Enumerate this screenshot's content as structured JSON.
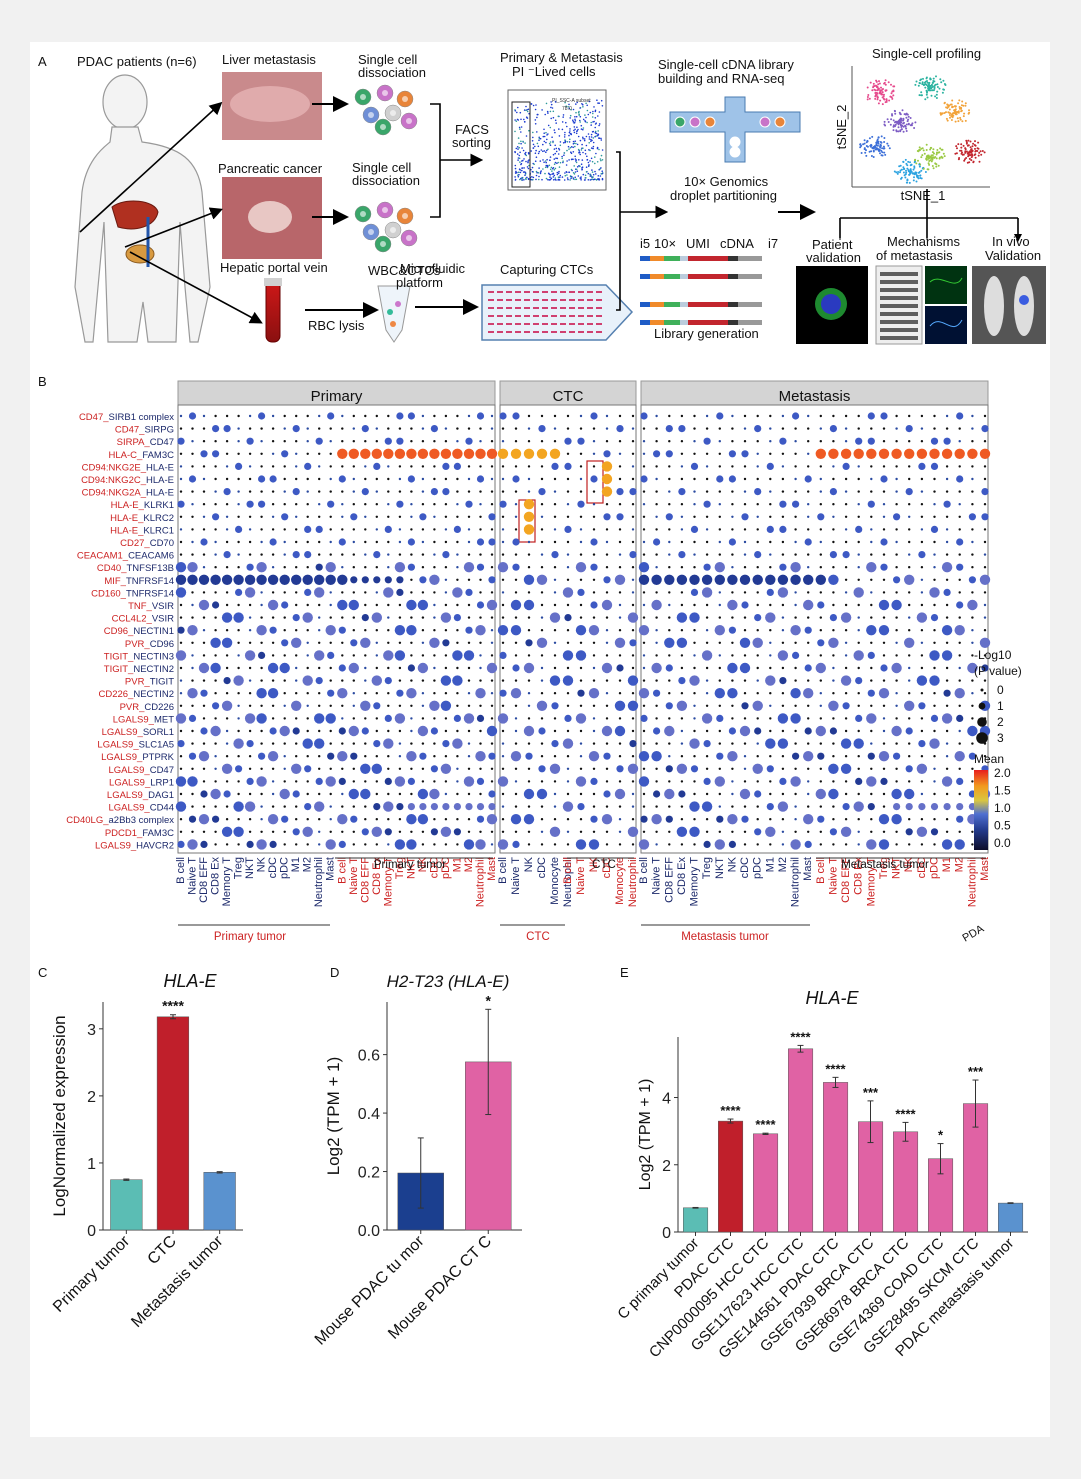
{
  "colors": {
    "bar_primary": "#5bbdb4",
    "bar_ctc": "#c01f2b",
    "bar_meta": "#5a92cf",
    "bar_mouse_pdac": "#1b3f8f",
    "bar_pink": "#e062a4",
    "ligand_red": "#cc2222"
  },
  "panel_a": {
    "label": "A",
    "patients": "PDAC patients (n=6)",
    "liver": "Liver metastasis",
    "pancreatic": "Pancreatic cancer",
    "portal": "Hepatic portal vein",
    "sc_dissoc": [
      "Single cell",
      "dissociation"
    ],
    "sc_dissoc2": [
      "Single cell",
      "dissociation"
    ],
    "wbc": "WBC&CTCs",
    "rbc": "RBC lysis",
    "micro": [
      "Microfluidic",
      "platform"
    ],
    "capturing": "Capturing CTCs",
    "facs": [
      "FACS",
      "sorting"
    ],
    "primary_meta": [
      "Primary & Metastasis",
      "PI ⁻Lived cells"
    ],
    "facs_plot_title": "PI_SSC-A subset",
    "facs_plot_value": "78.0",
    "cdna": [
      "Single-cell cDNA library",
      "building and RNA-seq"
    ],
    "genomics": [
      "10× Genomics",
      "droplet partitioning"
    ],
    "lib_header": [
      "i5",
      "10×",
      "UMI",
      "cDNA",
      "i7"
    ],
    "lib_gen": "Library generation",
    "profiling": "Single-cell profiling",
    "tsne_x": "tSNE_1",
    "tsne_y": "tSNE_2",
    "patient_val": [
      "Patient",
      "validation"
    ],
    "mechanisms": [
      "Mechanisms",
      "of metastasis"
    ],
    "invivo": [
      "In vivo",
      "Validation"
    ]
  },
  "panel_b": {
    "label": "B",
    "groups": [
      "Primary",
      "CTC",
      "Metastasis"
    ],
    "pairs": [
      {
        "ligand": "CD47_",
        "receptor": "SIRB1 complex"
      },
      {
        "ligand": "CD47_",
        "receptor": "SIRPG"
      },
      {
        "ligand": "SIRPA_",
        "receptor": "CD47"
      },
      {
        "ligand": "HLA-C_",
        "receptor": "FAM3C"
      },
      {
        "ligand": "CD94:NKG2E_",
        "receptor": "HLA-E"
      },
      {
        "ligand": "CD94:NKG2C_",
        "receptor": "HLA-E"
      },
      {
        "ligand": "CD94:NKG2A_",
        "receptor": "HLA-E"
      },
      {
        "ligand": "HLA-E_",
        "receptor": "KLRK1"
      },
      {
        "ligand": "HLA-E_",
        "receptor": "KLRC2"
      },
      {
        "ligand": "HLA-E_",
        "receptor": "KLRC1"
      },
      {
        "ligand": "CD27_",
        "receptor": "CD70"
      },
      {
        "ligand": "CEACAM1_",
        "receptor": "CEACAM6"
      },
      {
        "ligand": "CD40_",
        "receptor": "TNFSF13B"
      },
      {
        "ligand": "MIF_",
        "receptor": "TNFRSF14"
      },
      {
        "ligand": "CD160_",
        "receptor": "TNFRSF14"
      },
      {
        "ligand": "TNF_",
        "receptor": "VSIR"
      },
      {
        "ligand": "CCL4L2_",
        "receptor": "VSIR"
      },
      {
        "ligand": "CD96_",
        "receptor": "NECTIN1"
      },
      {
        "ligand": "PVR_",
        "receptor": "CD96"
      },
      {
        "ligand": "TIGIT_",
        "receptor": "NECTIN3"
      },
      {
        "ligand": "TIGIT_",
        "receptor": "NECTIN2"
      },
      {
        "ligand": "PVR_",
        "receptor": "TIGIT"
      },
      {
        "ligand": "CD226_",
        "receptor": "NECTIN2"
      },
      {
        "ligand": "PVR_",
        "receptor": "CD226"
      },
      {
        "ligand": "LGALS9_",
        "receptor": "MET"
      },
      {
        "ligand": "LGALS9_",
        "receptor": "SORL1"
      },
      {
        "ligand": "LGALS9_",
        "receptor": "SLC1A5"
      },
      {
        "ligand": "LGALS9_",
        "receptor": "PTPRK"
      },
      {
        "ligand": "LGALS9_",
        "receptor": "CD47"
      },
      {
        "ligand": "LGALS9_",
        "receptor": "LRP1"
      },
      {
        "ligand": "LGALS9_",
        "receptor": "DAG1"
      },
      {
        "ligand": "LGALS9_",
        "receptor": "CD44"
      },
      {
        "ligand": "CD40LG_",
        "receptor": "a2Bb3 complex"
      },
      {
        "ligand": "PDCD1_",
        "receptor": "FAM3C"
      },
      {
        "ligand": "LGALS9_",
        "receptor": "HAVCR2"
      }
    ],
    "primary_black": [
      "B cell",
      "Naive T",
      "CD8 EFF",
      "CD8 Ex",
      "Memory T",
      "Treg",
      "NKT",
      "NK",
      "cDC",
      "pDC",
      "M1",
      "M2",
      "Neutrophil",
      "Mast"
    ],
    "primary_red": [
      "B cell",
      "Naive T",
      "CD8 EFF",
      "CD8 Ex",
      "Memory T",
      "Treg",
      "NKT",
      "NK",
      "cDC",
      "pDC",
      "M1",
      "M2",
      "Neutrophil",
      "Mast"
    ],
    "ctc_black": [
      "B cell",
      "Naive T",
      "NK",
      "cDC",
      "Monocyte",
      "Neutrophil"
    ],
    "ctc_red": [
      "B cell",
      "Naive T",
      "NK",
      "cDC",
      "Monocyte",
      "Neutrophil"
    ],
    "meta_black": [
      "B cell",
      "Naive T",
      "CD8 EFF",
      "CD8 Ex",
      "Memory T",
      "Treg",
      "NKT",
      "NK",
      "cDC",
      "pDC",
      "M1",
      "M2",
      "Neutrophil",
      "Mast"
    ],
    "meta_red": [
      "B cell",
      "Naive T",
      "CD8 EFF",
      "CD8 Ex",
      "Memory T",
      "Treg",
      "NKT",
      "NK",
      "cDC",
      "pDC",
      "M1",
      "M2",
      "Neutrophil",
      "Mast"
    ],
    "top_labels": {
      "primary": "Primary tumor",
      "ctc": "CTC",
      "meta": "Metastasis tumor"
    },
    "bottom_labels": {
      "primary": "Primary tumor",
      "ctc": "CTC",
      "meta": "Metastasis tumor"
    },
    "pda": "PDA",
    "legend": {
      "pval_title": [
        "-Log10",
        "(P value)"
      ],
      "sizes": [
        "0",
        "1",
        "2",
        "3"
      ],
      "mean_title": "Mean",
      "mean_ticks": [
        "2.0",
        "1.5",
        "1.0",
        "0.5",
        "0.0"
      ]
    }
  },
  "panel_c": {
    "label": "C",
    "chart_data": {
      "type": "bar",
      "title": "HLA-E",
      "ylabel": "LogNormalized expression",
      "categories": [
        "Primary tumor",
        "CTC",
        "Metastasis tumor"
      ],
      "values": [
        0.75,
        3.18,
        0.86
      ],
      "errors": [
        0.01,
        0.03,
        0.01
      ],
      "sig": [
        "",
        "****",
        ""
      ],
      "ylim": [
        0,
        3.4
      ],
      "yticks": [
        0,
        1,
        2,
        3
      ]
    }
  },
  "panel_d": {
    "label": "D",
    "chart_data": {
      "type": "bar",
      "title": "H2-T23 (HLA-E)",
      "ylabel": "Log2 (TPM + 1)",
      "categories": [
        "Mouse PDAC tu mor",
        "Mouse  PDAC CT C"
      ],
      "values": [
        0.195,
        0.575
      ],
      "errors": [
        0.12,
        0.18
      ],
      "sig": [
        "",
        "*"
      ],
      "ylim": [
        0,
        0.78
      ],
      "yticks": [
        0.0,
        0.2,
        0.4,
        0.6
      ],
      "ytick_labels": [
        "0.0",
        "0.2",
        "0.4",
        "0.6"
      ]
    }
  },
  "panel_e": {
    "label": "E",
    "chart_data": {
      "type": "bar",
      "title": "HLA-E",
      "ylabel": "Log2 (TPM + 1)",
      "categories": [
        "C primary tumor",
        "PDAC CTC",
        "CNP0000095 HCC CTC",
        "GSE117623 HCC CTC",
        "GSE144561 PDAC CTC",
        "GSE67939 BRCA CTC",
        "GSE86978 BRCA CTC",
        "GSE74369 COAD CTC",
        "GSE28495 SKCM CTC",
        "PDAC metastasis tumor"
      ],
      "values": [
        0.72,
        3.3,
        2.92,
        5.45,
        4.45,
        3.28,
        2.98,
        2.18,
        3.82,
        0.86
      ],
      "errors": [
        0.01,
        0.06,
        0.02,
        0.1,
        0.15,
        0.62,
        0.28,
        0.45,
        0.7,
        0.01
      ],
      "sig": [
        "",
        "****",
        "****",
        "****",
        "****",
        "***",
        "****",
        "*",
        "***",
        ""
      ],
      "ylim": [
        0,
        5.8
      ],
      "yticks": [
        0,
        2,
        4
      ]
    }
  }
}
